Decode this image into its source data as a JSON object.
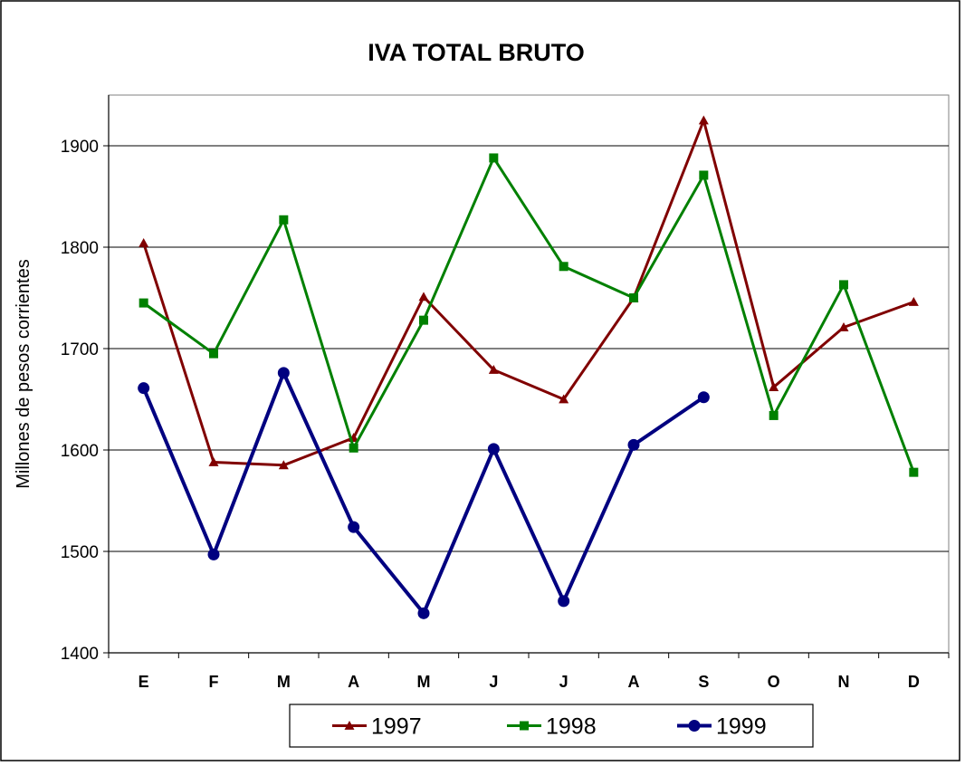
{
  "chart_data": {
    "type": "line",
    "title": "IVA TOTAL BRUTO",
    "xlabel": "",
    "ylabel": "Millones de pesos corrientes",
    "categories": [
      "E",
      "F",
      "M",
      "A",
      "M",
      "J",
      "J",
      "A",
      "S",
      "O",
      "N",
      "D"
    ],
    "ylim": [
      1400,
      1950
    ],
    "yticks": [
      1400,
      1500,
      1600,
      1700,
      1800,
      1900
    ],
    "grid": true,
    "legend_position": "bottom",
    "series": [
      {
        "name": "1997",
        "color": "#800000",
        "marker": "triangle",
        "values": [
          1804,
          1588,
          1585,
          1612,
          1751,
          1679,
          1650,
          1750,
          1925,
          1662,
          1721,
          1746
        ]
      },
      {
        "name": "1998",
        "color": "#008000",
        "marker": "square",
        "values": [
          1745,
          1695,
          1827,
          1602,
          1728,
          1888,
          1781,
          1750,
          1871,
          1634,
          1763,
          1578
        ]
      },
      {
        "name": "1999",
        "color": "#000080",
        "marker": "circle",
        "values": [
          1661,
          1497,
          1676,
          1524,
          1439,
          1601,
          1451,
          1605,
          1652,
          null,
          null,
          null
        ]
      }
    ]
  }
}
